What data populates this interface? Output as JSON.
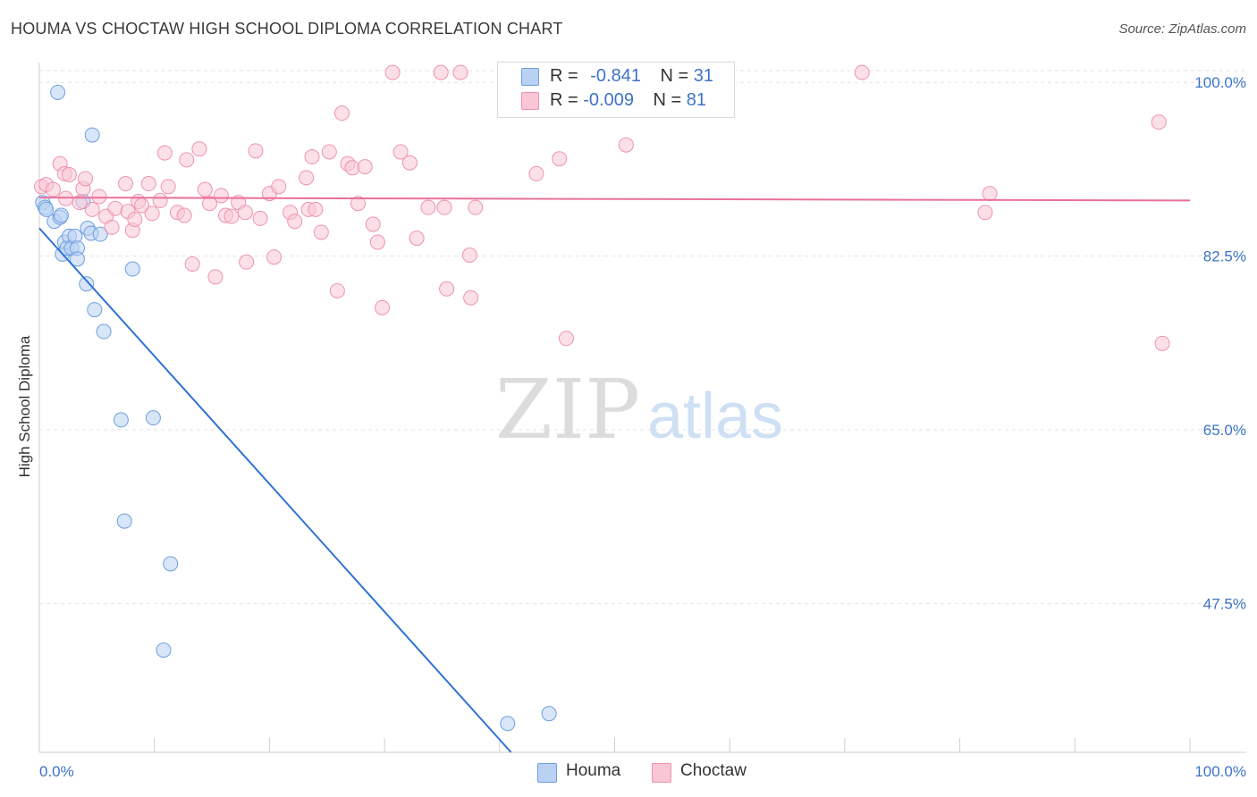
{
  "title": "HOUMA VS CHOCTAW HIGH SCHOOL DIPLOMA CORRELATION CHART",
  "source": "Source: ZipAtlas.com",
  "colors": {
    "houma": "#6d9fe0",
    "houma_fill": "#b9d1f3",
    "houma_line": "#2f72d6",
    "choctaw": "#ef93ad",
    "choctaw_fill": "#f8c6d5",
    "choctaw_line": "#e8709a",
    "axis_text": "#3d73c8",
    "grid": "#e3e3e3"
  },
  "legend": {
    "houma": {
      "r_label": "R = ",
      "r_value": "-0.841",
      "n_label": "N = ",
      "n_value": "31"
    },
    "choctaw": {
      "r_label": "R = ",
      "r_value": "-0.009",
      "n_label": "N = ",
      "n_value": "81"
    }
  },
  "bottom_legend": {
    "houma": "Houma",
    "choctaw": "Choctaw"
  },
  "watermark": {
    "zip": "ZIP",
    "atlas": "atlas"
  },
  "chart_data": {
    "type": "scatter",
    "title": "HOUMA VS CHOCTAW HIGH SCHOOL DIPLOMA CORRELATION CHART",
    "xlabel": "",
    "ylabel": "High School Diploma",
    "xlim": [
      0,
      100
    ],
    "ylim": [
      32.5,
      102
    ],
    "x_tick_labels": [
      "0.0%",
      "100.0%"
    ],
    "y_ticks": [
      100,
      82.5,
      65,
      47.5
    ],
    "y_tick_labels": [
      "100.0%",
      "82.5%",
      "65.0%",
      "47.5%"
    ],
    "grid": true,
    "series": [
      {
        "name": "Houma",
        "r": -0.841,
        "n": 31,
        "trend": {
          "x": [
            0,
            41
          ],
          "y": [
            85.3,
            32.5
          ]
        },
        "points": [
          [
            0.3,
            87.9
          ],
          [
            0.5,
            87.4
          ],
          [
            0.6,
            87.2
          ],
          [
            1.3,
            86.0
          ],
          [
            1.6,
            99.0
          ],
          [
            1.8,
            86.4
          ],
          [
            1.9,
            86.6
          ],
          [
            2.0,
            82.7
          ],
          [
            2.2,
            83.9
          ],
          [
            2.4,
            83.3
          ],
          [
            2.6,
            84.5
          ],
          [
            2.8,
            83.3
          ],
          [
            3.1,
            84.5
          ],
          [
            3.3,
            83.3
          ],
          [
            3.3,
            82.2
          ],
          [
            3.8,
            88.0
          ],
          [
            4.1,
            79.7
          ],
          [
            4.2,
            85.3
          ],
          [
            4.5,
            84.8
          ],
          [
            4.6,
            94.7
          ],
          [
            4.8,
            77.1
          ],
          [
            5.3,
            84.7
          ],
          [
            5.6,
            74.9
          ],
          [
            8.1,
            81.2
          ],
          [
            7.1,
            66.0
          ],
          [
            9.9,
            66.2
          ],
          [
            7.4,
            55.8
          ],
          [
            11.4,
            51.5
          ],
          [
            10.8,
            42.8
          ],
          [
            40.7,
            35.4
          ],
          [
            44.3,
            36.4
          ]
        ]
      },
      {
        "name": "Choctaw",
        "r": -0.009,
        "n": 81,
        "trend": {
          "x": [
            0,
            100
          ],
          "y": [
            88.4,
            88.1
          ]
        },
        "points": [
          [
            0.2,
            89.5
          ],
          [
            0.6,
            89.7
          ],
          [
            1.2,
            89.2
          ],
          [
            1.8,
            91.8
          ],
          [
            2.3,
            88.3
          ],
          [
            2.2,
            90.8
          ],
          [
            2.6,
            90.7
          ],
          [
            3.5,
            87.9
          ],
          [
            3.8,
            89.3
          ],
          [
            4.0,
            90.3
          ],
          [
            4.6,
            87.2
          ],
          [
            5.2,
            88.5
          ],
          [
            5.8,
            86.5
          ],
          [
            6.3,
            85.4
          ],
          [
            6.6,
            87.3
          ],
          [
            7.5,
            89.8
          ],
          [
            7.7,
            87.0
          ],
          [
            8.1,
            85.1
          ],
          [
            8.3,
            86.2
          ],
          [
            8.6,
            88.0
          ],
          [
            8.9,
            87.6
          ],
          [
            9.5,
            89.8
          ],
          [
            9.8,
            86.8
          ],
          [
            10.5,
            88.1
          ],
          [
            10.9,
            92.9
          ],
          [
            11.2,
            89.5
          ],
          [
            12.0,
            86.9
          ],
          [
            12.6,
            86.6
          ],
          [
            12.8,
            92.2
          ],
          [
            13.3,
            81.7
          ],
          [
            13.9,
            93.3
          ],
          [
            14.4,
            89.2
          ],
          [
            14.8,
            87.8
          ],
          [
            15.3,
            80.4
          ],
          [
            15.8,
            88.6
          ],
          [
            16.2,
            86.6
          ],
          [
            16.7,
            86.5
          ],
          [
            17.3,
            87.9
          ],
          [
            17.9,
            86.9
          ],
          [
            18.0,
            81.9
          ],
          [
            18.8,
            93.1
          ],
          [
            19.2,
            86.3
          ],
          [
            20.0,
            88.8
          ],
          [
            20.4,
            82.4
          ],
          [
            20.8,
            89.5
          ],
          [
            21.8,
            86.9
          ],
          [
            22.2,
            86.0
          ],
          [
            23.2,
            90.4
          ],
          [
            23.4,
            87.2
          ],
          [
            23.7,
            92.5
          ],
          [
            24.0,
            87.2
          ],
          [
            24.5,
            84.9
          ],
          [
            25.2,
            93.0
          ],
          [
            25.9,
            79.0
          ],
          [
            26.3,
            96.9
          ],
          [
            26.8,
            91.8
          ],
          [
            27.2,
            91.4
          ],
          [
            27.7,
            87.8
          ],
          [
            28.3,
            91.5
          ],
          [
            29.0,
            85.7
          ],
          [
            29.4,
            83.9
          ],
          [
            29.8,
            77.3
          ],
          [
            30.7,
            101.0
          ],
          [
            31.4,
            93.0
          ],
          [
            32.2,
            91.9
          ],
          [
            32.8,
            84.3
          ],
          [
            33.8,
            87.4
          ],
          [
            34.9,
            101.0
          ],
          [
            35.2,
            87.4
          ],
          [
            35.4,
            79.2
          ],
          [
            36.6,
            101.0
          ],
          [
            37.4,
            82.6
          ],
          [
            37.9,
            87.4
          ],
          [
            37.5,
            78.3
          ],
          [
            43.2,
            90.8
          ],
          [
            45.2,
            92.3
          ],
          [
            45.8,
            74.2
          ],
          [
            51.0,
            93.7
          ],
          [
            71.5,
            101.0
          ],
          [
            82.2,
            86.9
          ],
          [
            82.6,
            88.8
          ],
          [
            97.3,
            96.0
          ],
          [
            97.6,
            73.7
          ]
        ]
      }
    ]
  }
}
